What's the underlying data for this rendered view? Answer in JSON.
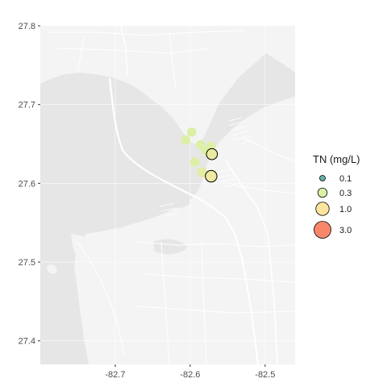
{
  "chart_data": {
    "type": "scatter",
    "title": "",
    "xlabel": "",
    "ylabel": "",
    "xlim": [
      -82.8,
      -82.46
    ],
    "ylim": [
      27.37,
      27.8
    ],
    "x_ticks": [
      -82.7,
      -82.6,
      -82.5
    ],
    "x_tick_labels": [
      "-82.7",
      "-82.6",
      "-82.5"
    ],
    "y_ticks": [
      27.4,
      27.5,
      27.6,
      27.7,
      27.8
    ],
    "y_tick_labels": [
      "27.4",
      "27.5",
      "27.6",
      "27.7",
      "27.8"
    ],
    "grid": true,
    "basemap": "greyscale street/coastline tiles",
    "legend": {
      "title": "TN (mg/L)",
      "placement": "right",
      "entries": [
        {
          "label": "0.1",
          "value": 0.1,
          "color": "#66b2a6"
        },
        {
          "label": "0.3",
          "value": 0.3,
          "color": "#dcefa6"
        },
        {
          "label": "1.0",
          "value": 1.0,
          "color": "#fde49e"
        },
        {
          "label": "3.0",
          "value": 3.0,
          "color": "#f8876a"
        }
      ]
    },
    "points": [
      {
        "x": -82.598,
        "y": 27.665,
        "tn": 0.3,
        "outlined": false
      },
      {
        "x": -82.606,
        "y": 27.655,
        "tn": 0.3,
        "outlined": false
      },
      {
        "x": -82.586,
        "y": 27.649,
        "tn": 0.3,
        "outlined": false
      },
      {
        "x": -82.572,
        "y": 27.647,
        "tn": 0.3,
        "outlined": false
      },
      {
        "x": -82.579,
        "y": 27.641,
        "tn": 0.3,
        "outlined": false
      },
      {
        "x": -82.571,
        "y": 27.637,
        "tn": 0.5,
        "outlined": true
      },
      {
        "x": -82.594,
        "y": 27.627,
        "tn": 0.3,
        "outlined": false
      },
      {
        "x": -82.584,
        "y": 27.614,
        "tn": 0.4,
        "outlined": false
      },
      {
        "x": -82.572,
        "y": 27.609,
        "tn": 0.6,
        "outlined": true
      }
    ]
  },
  "colors": {
    "water": "#e6e6e6",
    "land": "#f4f4f4",
    "road": "#ffffff",
    "grid": "#ffffff",
    "point_outline": "#000000"
  }
}
